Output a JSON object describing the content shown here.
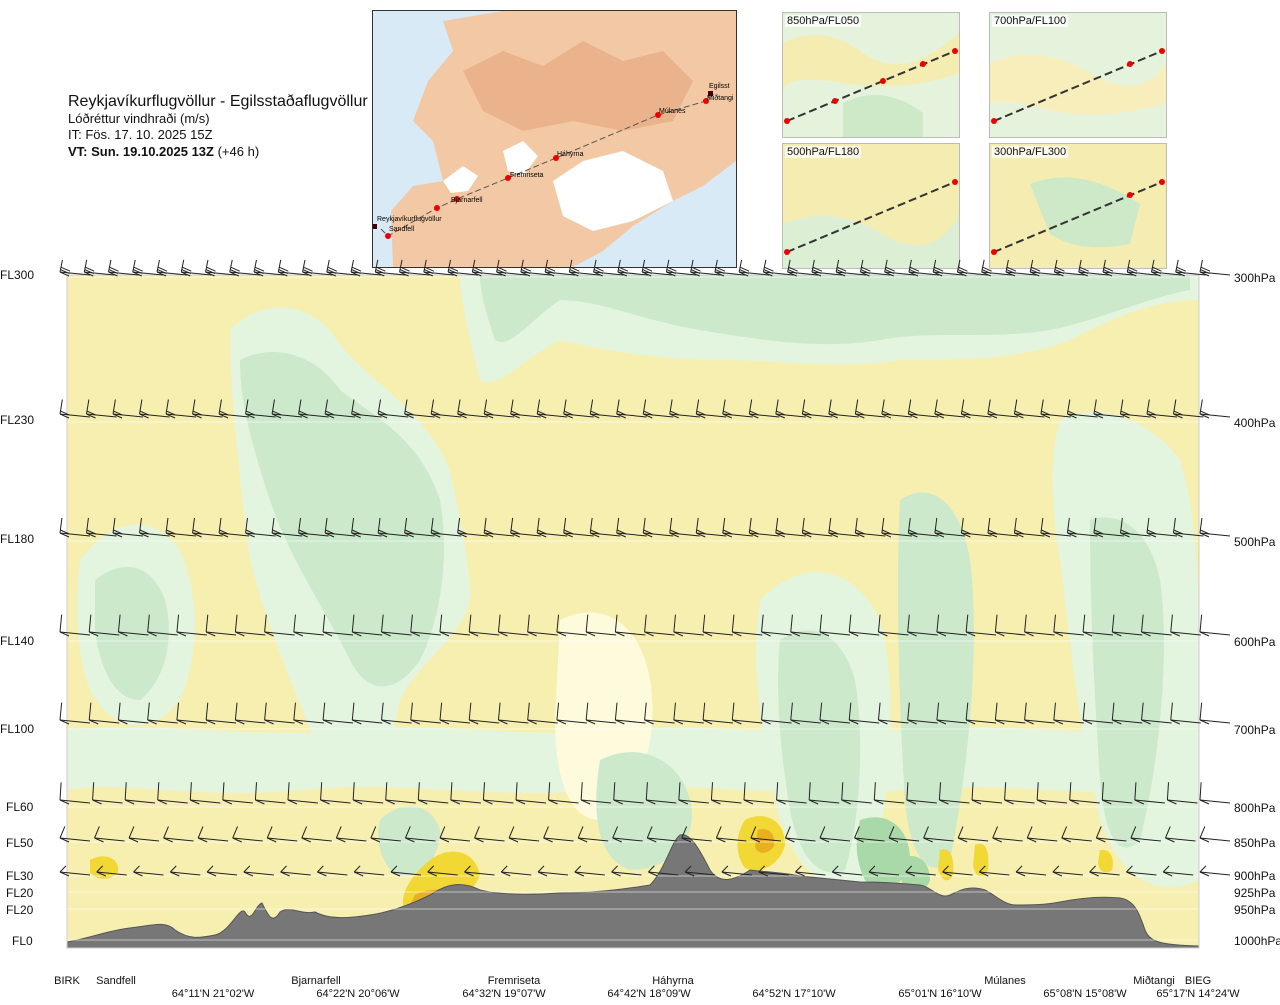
{
  "header": {
    "route": "Reykjavíkurflugvöllur - Egilsstaðaflugvöllur",
    "variable": "Lóðréttur vindhraði (m/s)",
    "issue_time": "IT: Fös. 17. 10. 2025 15Z",
    "valid_time_bold": "VT: Sun. 19.10.2025 13Z",
    "valid_time_offset": "(+46 h)"
  },
  "map": {
    "waypoints": [
      "Reykjavíkurflugvöllur",
      "Sandfell",
      "Bjarnarfell",
      "Fremriseta",
      "Háhyrna",
      "Múlanes",
      "Egilsst",
      "Miðtangi"
    ]
  },
  "panels": [
    {
      "label": "850hPa/FL050"
    },
    {
      "label": "700hPa/FL100"
    },
    {
      "label": "500hPa/FL180"
    },
    {
      "label": "300hPa/FL300"
    }
  ],
  "chart_data": {
    "type": "heatmap",
    "title": "",
    "xlabel": "",
    "ylabel": "",
    "levels": [
      {
        "fl": "FL300",
        "hpa": "300hPa"
      },
      {
        "fl": "FL230",
        "hpa": "400hPa"
      },
      {
        "fl": "FL180",
        "hpa": "500hPa"
      },
      {
        "fl": "FL140",
        "hpa": "600hPa"
      },
      {
        "fl": "FL100",
        "hpa": "700hPa"
      },
      {
        "fl": "FL60",
        "hpa": "800hPa"
      },
      {
        "fl": "FL50",
        "hpa": "850hPa"
      },
      {
        "fl": "FL30",
        "hpa": "900hPa"
      },
      {
        "fl": "FL20",
        "hpa": "925hPa"
      },
      {
        "fl": "FL20",
        "hpa": "950hPa"
      },
      {
        "fl": "FL0",
        "hpa": "1000hPa"
      }
    ],
    "waypoints": [
      "BIRK",
      "Sandfell",
      "Bjarnarfell",
      "Fremriseta",
      "Háhyrna",
      "Múlanes",
      "Miðtangi",
      "BIEG"
    ],
    "coordinates": [
      "64°11'N 21°02'W",
      "64°22'N 20°06'W",
      "64°32'N 19°07'W",
      "64°42'N 18°09'W",
      "64°52'N 17°10'W",
      "65°01'N 16°10'W",
      "65°08'N 15°08'W",
      "65°17'N 14°24'W"
    ],
    "colors": {
      "green_strong": "#a9d8a9",
      "green": "#cce9cb",
      "green_light": "#e3f4df",
      "cream": "#fdfbdc",
      "yellow_light": "#fbf3b5",
      "yellow": "#f5e8a0",
      "yellow_strong": "#f1d835",
      "orange": "#e8b020",
      "terrain": "#777777"
    },
    "grid": true
  }
}
